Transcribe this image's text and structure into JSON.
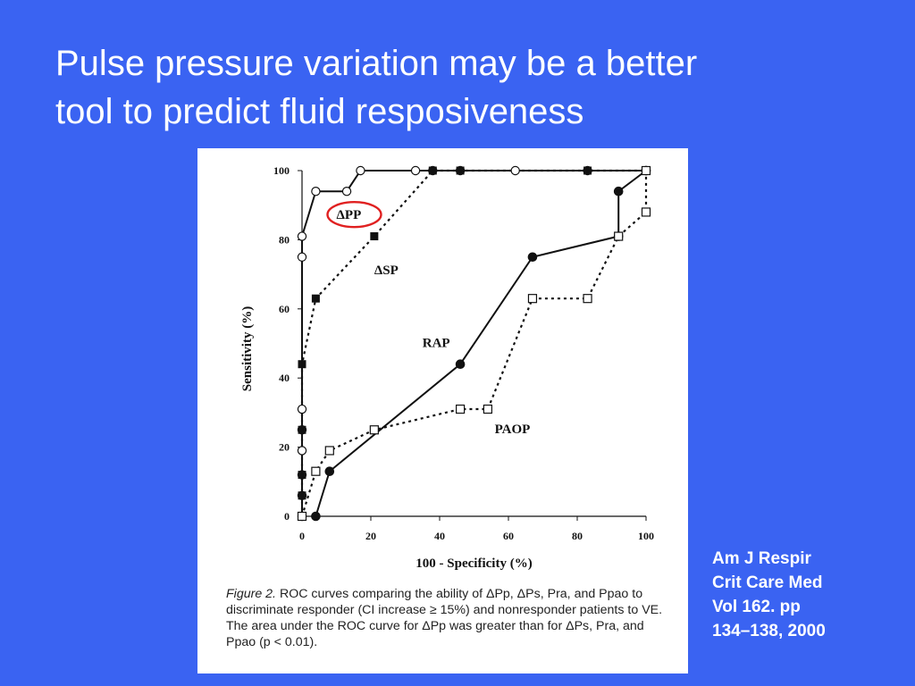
{
  "slide": {
    "title_line1": "Pulse pressure variation may be a better",
    "title_line2": "tool to predict fluid resposiveness",
    "citation": [
      "Am J Respir",
      "Crit Care Med",
      "Vol 162. pp",
      "134–138, 2000"
    ]
  },
  "caption": {
    "label": "Figure 2.",
    "text": " ROC curves comparing the ability of ΔPp, ΔPs, Pra, and Ppao to discriminate responder (CI increase ≥ 15%) and nonresponder patients to VE. The area under the ROC curve for ΔPp was greater than for ΔPs, Pra, and Ppao (p < 0.01)."
  },
  "colors": {
    "background": "#3a63f2",
    "highlight_circle": "#e02020",
    "ink": "#111111"
  },
  "chart_data": {
    "type": "line",
    "xlabel": "100 - Specificity (%)",
    "ylabel": "Sensitivity (%)",
    "xlim": [
      0,
      100
    ],
    "ylim": [
      0,
      100
    ],
    "xticks": [
      0,
      20,
      40,
      60,
      80,
      100
    ],
    "yticks": [
      0,
      20,
      40,
      60,
      80,
      100
    ],
    "grid": false,
    "series": [
      {
        "name": "ΔPP",
        "marker": "open-circle",
        "line": "solid",
        "highlighted": true,
        "x": [
          0,
          0,
          0,
          0,
          0,
          0,
          0,
          0,
          4,
          13,
          17,
          33,
          38,
          46,
          62,
          83,
          100
        ],
        "y": [
          0,
          6,
          12,
          19,
          25,
          31,
          75,
          81,
          94,
          94,
          100,
          100,
          100,
          100,
          100,
          100,
          100
        ]
      },
      {
        "name": "ΔSP",
        "marker": "filled-square",
        "line": "dotted",
        "x": [
          0,
          0,
          0,
          0,
          0,
          4,
          21,
          38,
          46,
          83,
          100
        ],
        "y": [
          0,
          6,
          12,
          25,
          44,
          63,
          81,
          100,
          100,
          100,
          100
        ]
      },
      {
        "name": "RAP",
        "marker": "filled-circle",
        "line": "solid",
        "x": [
          4,
          8,
          46,
          67,
          92,
          92,
          100
        ],
        "y": [
          0,
          13,
          44,
          75,
          81,
          94,
          100
        ]
      },
      {
        "name": "PAOP",
        "marker": "open-square",
        "line": "dotted",
        "x": [
          0,
          4,
          8,
          21,
          46,
          54,
          67,
          83,
          92,
          100,
          100
        ],
        "y": [
          0,
          13,
          19,
          25,
          31,
          31,
          63,
          63,
          81,
          88,
          100
        ]
      }
    ]
  }
}
